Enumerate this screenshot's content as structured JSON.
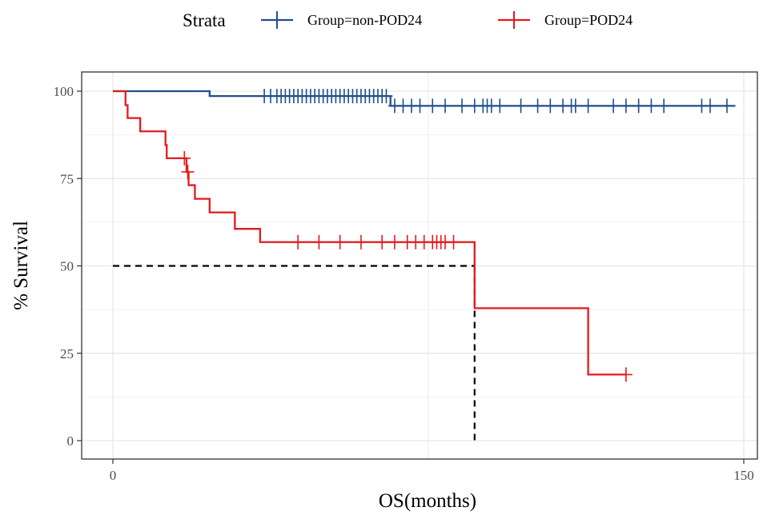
{
  "chart_data": {
    "type": "line",
    "subtype": "kaplan-meier",
    "xlabel": "OS(months)",
    "ylabel": "% Survival",
    "xlim": [
      0,
      150
    ],
    "ylim": [
      0,
      100
    ],
    "x_ticks": [
      0,
      150
    ],
    "y_ticks": [
      0,
      25,
      50,
      75,
      100
    ],
    "grid": true,
    "legend": {
      "title": "Strata",
      "position": "top"
    },
    "series": [
      {
        "name": "Group=non-POD24",
        "color": "#1f4e8c",
        "steps": [
          [
            0,
            100
          ],
          [
            23,
            98.6
          ],
          [
            66,
            95.8
          ],
          [
            148,
            95.8
          ]
        ],
        "censor_x": [
          36,
          37.5,
          39,
          40,
          41,
          42,
          43,
          44,
          45,
          46,
          47,
          48,
          49,
          50,
          51,
          52,
          53,
          54,
          55,
          56,
          57,
          58,
          59,
          60,
          61,
          62,
          63,
          64,
          65,
          67,
          69,
          71,
          73,
          76,
          79,
          83,
          86,
          88,
          89,
          90,
          92,
          97,
          101,
          104,
          107,
          109,
          110,
          113,
          119,
          122,
          125,
          128,
          131,
          140,
          142,
          146
        ]
      },
      {
        "name": "Group=POD24",
        "color": "#e31a1c",
        "steps": [
          [
            0,
            100
          ],
          [
            3,
            96
          ],
          [
            3.5,
            92.3
          ],
          [
            6.5,
            88.5
          ],
          [
            12.5,
            84.6
          ],
          [
            12.8,
            80.8
          ],
          [
            17.5,
            76.9
          ],
          [
            18,
            73.1
          ],
          [
            19.5,
            69.2
          ],
          [
            23,
            65.3
          ],
          [
            29,
            60.6
          ],
          [
            35,
            56.8
          ],
          [
            86,
            56.8
          ],
          [
            86,
            37.9
          ],
          [
            113,
            37.9
          ],
          [
            113,
            18.9
          ],
          [
            122,
            18.9
          ]
        ],
        "censor_x": [
          17,
          17.8,
          44,
          49,
          54,
          59,
          64,
          67,
          70,
          72,
          74,
          76,
          77,
          78,
          79,
          81,
          122
        ]
      }
    ],
    "median_line": {
      "x": 86,
      "y": 50,
      "style": "dashed",
      "color": "#000000"
    }
  }
}
